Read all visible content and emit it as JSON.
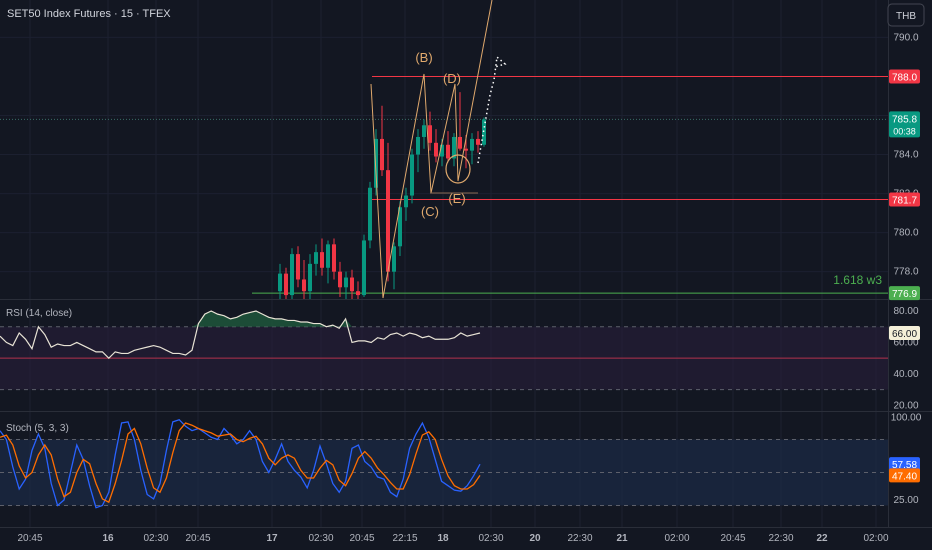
{
  "header": {
    "symbol_title": "SET50 Index Futures · 15 · TFEX",
    "currency_button": "THB"
  },
  "chart_data": [
    {
      "type": "candlestick",
      "title": "SET50 Index Futures · 15 · TFEX",
      "price_axis_ticks": [
        "790.0",
        "786.0",
        "784.0",
        "782.0",
        "780.0",
        "778.0"
      ],
      "ylim": [
        776.6,
        791.2
      ],
      "time_axis_ticks": [
        "20:45",
        "16",
        "02:30",
        "20:45",
        "17",
        "02:30",
        "20:45",
        "22:15",
        "18",
        "02:30",
        "20",
        "22:30",
        "21",
        "02:00",
        "20:45",
        "22:30",
        "22",
        "02:00"
      ],
      "candles": [
        {
          "o": 777.0,
          "h": 778.4,
          "l": 776.6,
          "c": 777.9
        },
        {
          "o": 777.9,
          "h": 778.2,
          "l": 776.6,
          "c": 776.8
        },
        {
          "o": 776.8,
          "h": 779.2,
          "l": 776.6,
          "c": 778.9
        },
        {
          "o": 778.9,
          "h": 779.3,
          "l": 777.2,
          "c": 777.6
        },
        {
          "o": 777.6,
          "h": 778.6,
          "l": 776.6,
          "c": 777.0
        },
        {
          "o": 777.0,
          "h": 778.9,
          "l": 776.6,
          "c": 778.4
        },
        {
          "o": 778.4,
          "h": 779.4,
          "l": 777.8,
          "c": 779.0
        },
        {
          "o": 779.0,
          "h": 779.7,
          "l": 777.8,
          "c": 778.2
        },
        {
          "o": 778.2,
          "h": 779.6,
          "l": 777.4,
          "c": 779.4
        },
        {
          "o": 779.4,
          "h": 779.7,
          "l": 777.6,
          "c": 778.0
        },
        {
          "o": 778.0,
          "h": 778.5,
          "l": 776.7,
          "c": 777.2
        },
        {
          "o": 777.2,
          "h": 778.0,
          "l": 776.6,
          "c": 777.7
        },
        {
          "o": 777.7,
          "h": 778.1,
          "l": 776.6,
          "c": 777.0
        },
        {
          "o": 777.0,
          "h": 777.5,
          "l": 776.6,
          "c": 776.8
        },
        {
          "o": 776.8,
          "h": 779.9,
          "l": 776.7,
          "c": 779.6
        },
        {
          "o": 779.6,
          "h": 782.6,
          "l": 779.2,
          "c": 782.3
        },
        {
          "o": 782.3,
          "h": 785.3,
          "l": 781.9,
          "c": 784.8
        },
        {
          "o": 784.8,
          "h": 786.5,
          "l": 782.9,
          "c": 783.2
        },
        {
          "o": 783.2,
          "h": 784.6,
          "l": 777.5,
          "c": 778.0
        },
        {
          "o": 778.0,
          "h": 779.5,
          "l": 777.1,
          "c": 779.3
        },
        {
          "o": 779.3,
          "h": 781.6,
          "l": 778.8,
          "c": 781.3
        },
        {
          "o": 781.3,
          "h": 782.3,
          "l": 780.6,
          "c": 781.9
        },
        {
          "o": 781.9,
          "h": 784.3,
          "l": 781.5,
          "c": 784.0
        },
        {
          "o": 784.0,
          "h": 785.3,
          "l": 783.1,
          "c": 784.9
        },
        {
          "o": 784.9,
          "h": 785.8,
          "l": 784.3,
          "c": 785.5
        },
        {
          "o": 785.5,
          "h": 786.2,
          "l": 784.2,
          "c": 784.6
        },
        {
          "o": 784.6,
          "h": 785.3,
          "l": 783.6,
          "c": 783.9
        },
        {
          "o": 783.9,
          "h": 784.8,
          "l": 783.4,
          "c": 784.5
        },
        {
          "o": 784.5,
          "h": 785.2,
          "l": 783.6,
          "c": 783.8
        },
        {
          "o": 783.8,
          "h": 785.1,
          "l": 783.4,
          "c": 784.9
        },
        {
          "o": 784.9,
          "h": 787.2,
          "l": 784.2,
          "c": 784.3
        },
        {
          "o": 784.3,
          "h": 785.0,
          "l": 783.3,
          "c": 784.2
        },
        {
          "o": 784.2,
          "h": 785.1,
          "l": 783.5,
          "c": 784.8
        },
        {
          "o": 784.8,
          "h": 785.2,
          "l": 784.1,
          "c": 784.5
        },
        {
          "o": 784.5,
          "h": 785.9,
          "l": 784.4,
          "c": 785.8
        }
      ],
      "price_labels": [
        {
          "value": 788.0,
          "text": "788.0",
          "color": "#f23645"
        },
        {
          "value": 785.8,
          "text": "785.8",
          "sub": "00:38",
          "color": "#089981"
        },
        {
          "value": 781.7,
          "text": "781.7",
          "color": "#f23645"
        },
        {
          "value": 776.9,
          "text": "776.9",
          "color": "#4caf50"
        }
      ],
      "horizontal_lines": [
        {
          "value": 788.0,
          "color": "#f23645"
        },
        {
          "value": 781.7,
          "color": "#f23645"
        },
        {
          "value": 776.9,
          "color": "#4caf50",
          "label": "1.618 w3"
        }
      ],
      "wave_labels": [
        "(B)",
        "(C)",
        "(D)",
        "(E)"
      ],
      "colors": {
        "up": "#089981",
        "down": "#f23645",
        "wave": "#e0a96d"
      }
    },
    {
      "type": "line",
      "title": "RSI (14, close)",
      "ticks": [
        "80.00",
        "60.00",
        "40.00",
        "20.00"
      ],
      "ylim": [
        17,
        87
      ],
      "bands": {
        "upper": 70,
        "middle": 50,
        "lower": 30
      },
      "current_value_label": "66.00",
      "values": [
        64,
        60,
        58,
        66,
        62,
        56,
        70,
        65,
        57,
        59,
        58,
        58,
        60,
        58,
        56,
        54,
        54,
        50,
        54,
        53,
        53,
        55,
        56,
        57,
        58,
        57,
        55,
        53,
        53,
        52,
        55,
        72,
        78,
        80,
        78,
        77,
        75,
        76,
        78,
        79,
        80,
        78,
        76,
        75,
        75,
        74,
        74,
        73,
        73,
        72,
        72,
        70,
        71,
        69,
        75,
        60,
        61,
        61,
        60,
        63,
        62,
        65,
        66,
        64,
        66,
        65,
        63,
        64,
        62,
        62,
        62,
        63,
        66,
        64,
        65,
        66
      ]
    },
    {
      "type": "line",
      "title": "Stoch (5, 3, 3)",
      "ticks": [
        "100.00",
        "25.00"
      ],
      "ylim": [
        5,
        105
      ],
      "bands": {
        "upper": 80,
        "middle": 50,
        "lower": 20
      },
      "current_value_labels": [
        "57.58",
        "47.40"
      ],
      "series": [
        {
          "name": "%K",
          "color": "#2962ff",
          "values": [
            88,
            80,
            55,
            35,
            44,
            70,
            85,
            72,
            40,
            20,
            25,
            50,
            75,
            62,
            38,
            18,
            20,
            32,
            66,
            95,
            96,
            80,
            52,
            30,
            26,
            40,
            70,
            96,
            98,
            92,
            88,
            90,
            86,
            82,
            80,
            90,
            84,
            76,
            80,
            88,
            80,
            60,
            50,
            62,
            76,
            60,
            52,
            46,
            36,
            52,
            74,
            58,
            40,
            32,
            42,
            72,
            75,
            60,
            55,
            46,
            44,
            32,
            28,
            44,
            72,
            85,
            95,
            82,
            62,
            42,
            38,
            34,
            33,
            38,
            47,
            57.58
          ]
        },
        {
          "name": "%D",
          "color": "#ff6d00",
          "values": [
            82,
            84,
            75,
            56,
            45,
            50,
            66,
            75,
            66,
            44,
            28,
            32,
            50,
            62,
            58,
            40,
            26,
            23,
            40,
            61,
            85,
            90,
            76,
            54,
            36,
            32,
            45,
            68,
            88,
            95,
            93,
            90,
            88,
            86,
            83,
            84,
            85,
            80,
            78,
            81,
            83,
            76,
            63,
            57,
            63,
            66,
            63,
            52,
            45,
            45,
            54,
            61,
            57,
            43,
            38,
            49,
            63,
            69,
            63,
            54,
            48,
            41,
            35,
            35,
            48,
            67,
            84,
            87,
            80,
            62,
            47,
            38,
            35,
            35,
            39,
            47.4
          ]
        }
      ]
    }
  ]
}
